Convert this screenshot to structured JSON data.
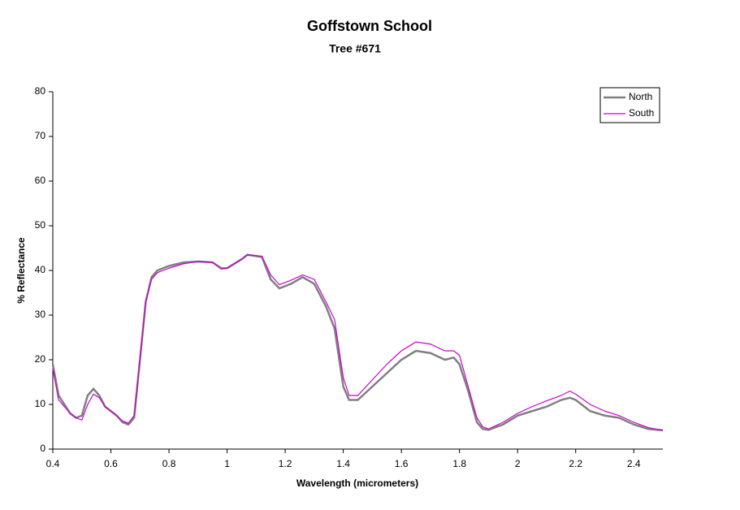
{
  "chart_data": {
    "type": "line",
    "title": "Goffstown School",
    "subtitle": "Tree #671",
    "x_label": "Wavelength (micrometers)",
    "y_label": "% Reflectance",
    "x": [
      0.4,
      0.42,
      0.44,
      0.46,
      0.48,
      0.5,
      0.52,
      0.54,
      0.56,
      0.58,
      0.6,
      0.62,
      0.64,
      0.66,
      0.68,
      0.7,
      0.72,
      0.74,
      0.76,
      0.8,
      0.85,
      0.9,
      0.95,
      0.98,
      1.0,
      1.05,
      1.07,
      1.12,
      1.15,
      1.18,
      1.22,
      1.26,
      1.3,
      1.34,
      1.37,
      1.4,
      1.42,
      1.45,
      1.5,
      1.55,
      1.6,
      1.65,
      1.7,
      1.75,
      1.78,
      1.8,
      1.83,
      1.86,
      1.88,
      1.9,
      1.95,
      2.0,
      2.05,
      2.1,
      2.15,
      2.18,
      2.2,
      2.25,
      2.3,
      2.35,
      2.4,
      2.45,
      2.5
    ],
    "series": [
      {
        "name": "North",
        "color": "#808080",
        "values": [
          19,
          12,
          10,
          8,
          7,
          7.5,
          12,
          13.5,
          12,
          9.5,
          8.5,
          7.5,
          6,
          5.5,
          7,
          20,
          33,
          38.5,
          40,
          41,
          41.8,
          42,
          41.8,
          40.5,
          40.5,
          42.5,
          43.5,
          43,
          38,
          36,
          37,
          38.5,
          37,
          32,
          27,
          14,
          11,
          11,
          14,
          17,
          20,
          22,
          21.5,
          20,
          20.5,
          19,
          13,
          6,
          4.5,
          4.3,
          5.5,
          7.5,
          8.5,
          9.5,
          11,
          11.5,
          11,
          8.5,
          7.5,
          7,
          5.5,
          4.5,
          4.2
        ]
      },
      {
        "name": "South",
        "color": "#cc00cc",
        "values": [
          18,
          11,
          9.5,
          8,
          7,
          6.5,
          10,
          12.3,
          11.5,
          9.5,
          8.5,
          7.5,
          6.3,
          5.8,
          7.5,
          20,
          33,
          38,
          39.5,
          40.5,
          41.5,
          42,
          41.8,
          40.3,
          40.5,
          42.5,
          43.5,
          43.2,
          39,
          36.8,
          37.8,
          39,
          38,
          33,
          29,
          16,
          12,
          12,
          15.5,
          19,
          22,
          24,
          23.5,
          22,
          22,
          21,
          14,
          7,
          5,
          4.5,
          6,
          8,
          9.5,
          10.8,
          12,
          13,
          12.3,
          10,
          8.5,
          7.5,
          6,
          4.8,
          4.2
        ]
      }
    ],
    "xlim": [
      0.4,
      2.5
    ],
    "xticks": [
      0.4,
      0.6,
      0.8,
      1,
      1.2,
      1.4,
      1.6,
      1.8,
      2,
      2.2,
      2.4
    ],
    "ylim": [
      0,
      80
    ],
    "yticks": [
      0,
      10,
      20,
      30,
      40,
      50,
      60,
      70,
      80
    ],
    "legend": "top-right"
  }
}
